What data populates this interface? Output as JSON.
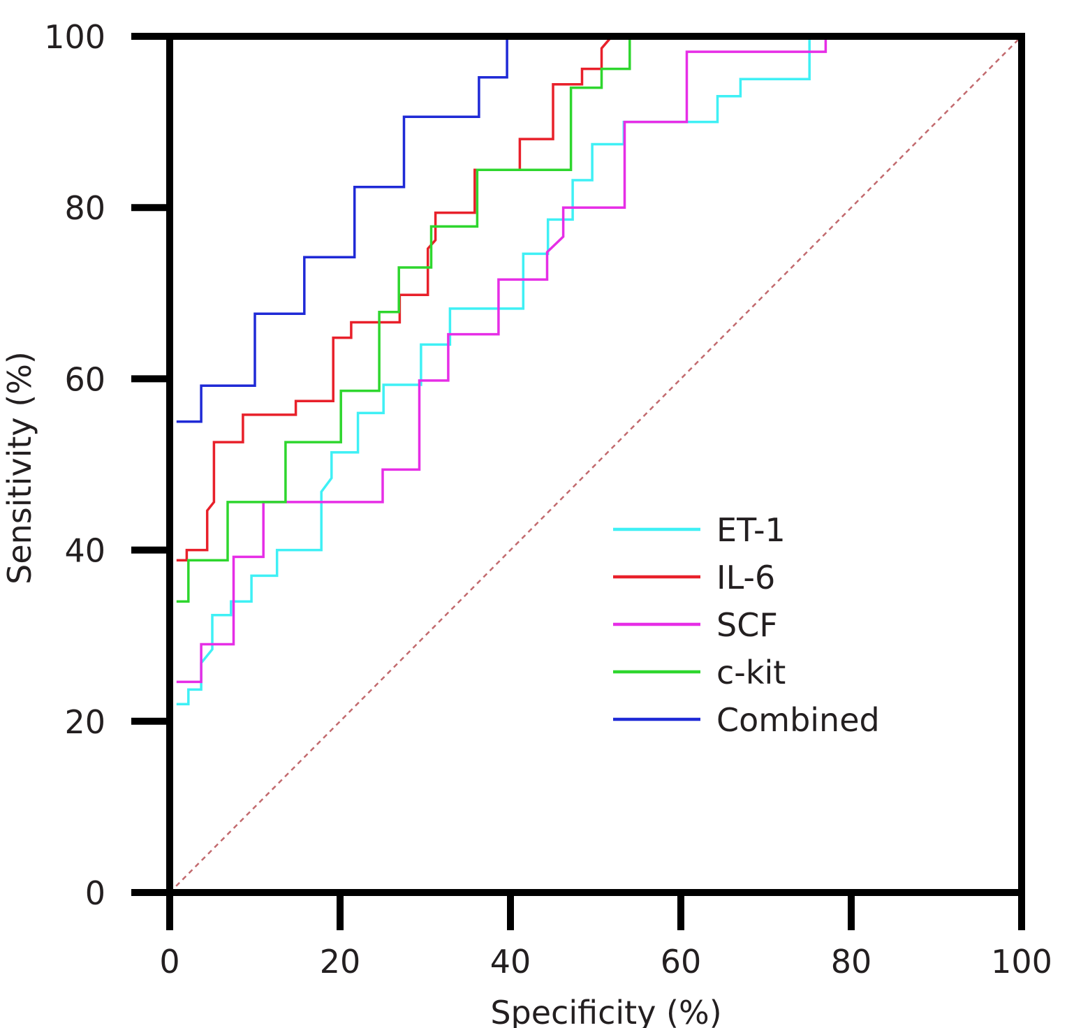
{
  "chart_data": {
    "type": "line",
    "title": "",
    "xlabel": "Specificity (%)",
    "ylabel": "Sensitivity (%)",
    "xlim": [
      0,
      100
    ],
    "ylim": [
      0,
      100
    ],
    "x_ticks": [
      "0",
      "20",
      "40",
      "60",
      "80",
      "100"
    ],
    "y_ticks": [
      "0",
      "20",
      "40",
      "60",
      "80",
      "100"
    ],
    "grid": false,
    "legend_position": "lower-right",
    "reference_line": {
      "points": [
        [
          0,
          0
        ],
        [
          100,
          100
        ]
      ],
      "color": "#c26a6e",
      "style": "dashed"
    },
    "series": [
      {
        "name": "ET-1",
        "color": "#3ff0f5",
        "points": [
          [
            0.8,
            22
          ],
          [
            2.2,
            22
          ],
          [
            2.2,
            23.7
          ],
          [
            3.7,
            23.7
          ],
          [
            3.7,
            26.8
          ],
          [
            5,
            28.4
          ],
          [
            5,
            32.4
          ],
          [
            7.2,
            32.4
          ],
          [
            7.2,
            34
          ],
          [
            9.6,
            34
          ],
          [
            9.6,
            37
          ],
          [
            12.6,
            37
          ],
          [
            12.6,
            40
          ],
          [
            17.8,
            40
          ],
          [
            17.8,
            46.8
          ],
          [
            19,
            48.4
          ],
          [
            19,
            51.4
          ],
          [
            22.1,
            51.4
          ],
          [
            22.1,
            56
          ],
          [
            25.1,
            56
          ],
          [
            25.1,
            59.3
          ],
          [
            29.5,
            59.3
          ],
          [
            29.5,
            64
          ],
          [
            32.9,
            64
          ],
          [
            32.9,
            68.2
          ],
          [
            41.5,
            68.2
          ],
          [
            41.5,
            74.6
          ],
          [
            44.4,
            74.6
          ],
          [
            44.4,
            78.6
          ],
          [
            47.3,
            78.6
          ],
          [
            47.3,
            83.2
          ],
          [
            49.6,
            83.2
          ],
          [
            49.6,
            87.4
          ],
          [
            53.3,
            87.4
          ],
          [
            53.3,
            90
          ],
          [
            64.3,
            90
          ],
          [
            64.3,
            93
          ],
          [
            67,
            93
          ],
          [
            67,
            95
          ],
          [
            75.1,
            95
          ],
          [
            75.1,
            100
          ]
        ]
      },
      {
        "name": "IL-6",
        "color": "#e8202a",
        "points": [
          [
            0.8,
            38.8
          ],
          [
            2,
            38.8
          ],
          [
            2,
            40
          ],
          [
            4.4,
            40
          ],
          [
            4.4,
            44.6
          ],
          [
            5.2,
            45.6
          ],
          [
            5.2,
            52.6
          ],
          [
            8.6,
            52.6
          ],
          [
            8.6,
            55.8
          ],
          [
            14.8,
            55.8
          ],
          [
            14.8,
            57.4
          ],
          [
            19.2,
            57.4
          ],
          [
            19.2,
            64.8
          ],
          [
            21.3,
            64.8
          ],
          [
            21.3,
            66.6
          ],
          [
            27,
            66.6
          ],
          [
            27,
            69.8
          ],
          [
            30.3,
            69.8
          ],
          [
            30.3,
            75.2
          ],
          [
            31.2,
            76.2
          ],
          [
            31.2,
            79.4
          ],
          [
            35.8,
            79.4
          ],
          [
            35.8,
            84.4
          ],
          [
            41.1,
            84.4
          ],
          [
            41.1,
            88
          ],
          [
            45,
            88
          ],
          [
            45,
            94.4
          ],
          [
            48.4,
            94.4
          ],
          [
            48.4,
            96.2
          ],
          [
            50.7,
            96.2
          ],
          [
            50.7,
            98.6
          ],
          [
            51.9,
            100
          ]
        ]
      },
      {
        "name": "SCF",
        "color": "#e62ee6",
        "points": [
          [
            0.8,
            24.6
          ],
          [
            3.7,
            24.6
          ],
          [
            3.7,
            29
          ],
          [
            7.5,
            29
          ],
          [
            7.5,
            39.2
          ],
          [
            11,
            39.2
          ],
          [
            11,
            45.6
          ],
          [
            25,
            45.6
          ],
          [
            25,
            49.4
          ],
          [
            29.3,
            49.4
          ],
          [
            29.3,
            59.8
          ],
          [
            32.7,
            59.8
          ],
          [
            32.7,
            65.2
          ],
          [
            38.6,
            65.2
          ],
          [
            38.6,
            71.6
          ],
          [
            44.3,
            71.6
          ],
          [
            44.3,
            74.8
          ],
          [
            46.2,
            76.6
          ],
          [
            46.2,
            80
          ],
          [
            53.4,
            80
          ],
          [
            53.4,
            90
          ],
          [
            60.7,
            90
          ],
          [
            60.7,
            98.2
          ],
          [
            77,
            98.2
          ],
          [
            77,
            100
          ]
        ]
      },
      {
        "name": "c-kit",
        "color": "#2ed62e",
        "points": [
          [
            0.8,
            34
          ],
          [
            2.2,
            34
          ],
          [
            2.2,
            38.8
          ],
          [
            6.8,
            38.8
          ],
          [
            6.8,
            45.6
          ],
          [
            13.6,
            45.6
          ],
          [
            13.6,
            52.6
          ],
          [
            20.1,
            52.6
          ],
          [
            20.1,
            58.6
          ],
          [
            24.6,
            58.6
          ],
          [
            24.6,
            67.8
          ],
          [
            26.9,
            67.8
          ],
          [
            26.9,
            73
          ],
          [
            30.7,
            73
          ],
          [
            30.7,
            77.8
          ],
          [
            36.1,
            77.8
          ],
          [
            36.1,
            84.4
          ],
          [
            47.1,
            84.4
          ],
          [
            47.1,
            94
          ],
          [
            50.7,
            94
          ],
          [
            50.7,
            96.2
          ],
          [
            54,
            96.2
          ],
          [
            54,
            100
          ]
        ]
      },
      {
        "name": "Combined",
        "color": "#1f2ad6",
        "points": [
          [
            0.8,
            55
          ],
          [
            3.7,
            55
          ],
          [
            3.7,
            59.2
          ],
          [
            10,
            59.2
          ],
          [
            10,
            67.6
          ],
          [
            15.8,
            67.6
          ],
          [
            15.8,
            74.2
          ],
          [
            21.7,
            74.2
          ],
          [
            21.7,
            82.4
          ],
          [
            27.5,
            82.4
          ],
          [
            27.5,
            90.6
          ],
          [
            36.3,
            90.6
          ],
          [
            36.3,
            95.2
          ],
          [
            39.6,
            95.2
          ],
          [
            39.6,
            100
          ]
        ]
      }
    ]
  }
}
